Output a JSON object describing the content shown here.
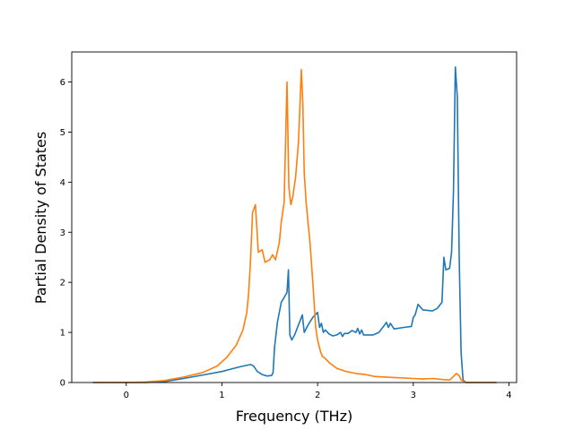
{
  "chart_data": {
    "type": "line",
    "title": "",
    "xlabel": "Frequency (THz)",
    "ylabel": "Partial Density of States",
    "xlim": [
      -0.57,
      4.08
    ],
    "ylim": [
      0,
      6.6
    ],
    "xticks": [
      0,
      1,
      2,
      3,
      4
    ],
    "xtick_labels": [
      "0",
      "1",
      "2",
      "3",
      "4"
    ],
    "yticks": [
      0,
      1,
      2,
      3,
      4,
      5,
      6
    ],
    "ytick_labels": [
      "0",
      "1",
      "2",
      "3",
      "4",
      "5",
      "6"
    ],
    "grid": false,
    "legend": "none",
    "series": [
      {
        "color": "#1f77b4",
        "x": [
          -0.35,
          0.0,
          0.2,
          0.4,
          0.6,
          0.8,
          1.0,
          1.1,
          1.2,
          1.25,
          1.3,
          1.33,
          1.37,
          1.42,
          1.47,
          1.52,
          1.535,
          1.55,
          1.58,
          1.62,
          1.65,
          1.68,
          1.695,
          1.71,
          1.73,
          1.76,
          1.8,
          1.84,
          1.86,
          1.9,
          1.95,
          2.0,
          2.02,
          2.04,
          2.06,
          2.08,
          2.12,
          2.16,
          2.2,
          2.24,
          2.26,
          2.28,
          2.32,
          2.36,
          2.4,
          2.42,
          2.44,
          2.46,
          2.48,
          2.52,
          2.58,
          2.64,
          2.68,
          2.72,
          2.74,
          2.76,
          2.8,
          2.9,
          2.98,
          3.0,
          3.02,
          3.05,
          3.1,
          3.2,
          3.25,
          3.3,
          3.32,
          3.34,
          3.38,
          3.4,
          3.42,
          3.44,
          3.46,
          3.48,
          3.5,
          3.52,
          3.55,
          3.6,
          3.7,
          3.87
        ],
        "values": [
          0.0,
          0.0,
          0.0,
          0.02,
          0.08,
          0.15,
          0.22,
          0.27,
          0.32,
          0.34,
          0.36,
          0.33,
          0.22,
          0.16,
          0.13,
          0.14,
          0.2,
          0.7,
          1.2,
          1.6,
          1.7,
          1.8,
          2.25,
          0.95,
          0.85,
          0.95,
          1.15,
          1.35,
          1.0,
          1.15,
          1.3,
          1.4,
          1.1,
          1.18,
          1.0,
          1.05,
          0.97,
          0.93,
          0.95,
          1.0,
          0.92,
          0.98,
          0.98,
          1.04,
          1.0,
          1.08,
          0.97,
          1.05,
          0.95,
          0.95,
          0.95,
          1.0,
          1.1,
          1.2,
          1.1,
          1.18,
          1.07,
          1.1,
          1.12,
          1.3,
          1.35,
          1.56,
          1.45,
          1.43,
          1.48,
          1.6,
          2.5,
          2.25,
          2.28,
          2.6,
          3.8,
          6.3,
          5.7,
          2.5,
          0.6,
          0.05,
          0.0,
          0.0,
          0.0,
          0.0
        ]
      },
      {
        "color": "#ff7f0e",
        "x": [
          -0.35,
          0.0,
          0.2,
          0.4,
          0.6,
          0.8,
          0.95,
          1.05,
          1.15,
          1.22,
          1.26,
          1.28,
          1.3,
          1.32,
          1.35,
          1.38,
          1.42,
          1.45,
          1.5,
          1.53,
          1.56,
          1.6,
          1.62,
          1.65,
          1.68,
          1.7,
          1.72,
          1.74,
          1.77,
          1.8,
          1.83,
          1.845,
          1.86,
          1.88,
          1.92,
          1.95,
          1.98,
          2.0,
          2.03,
          2.05,
          2.08,
          2.12,
          2.2,
          2.3,
          2.4,
          2.5,
          2.6,
          2.8,
          3.0,
          3.1,
          3.2,
          3.3,
          3.38,
          3.42,
          3.45,
          3.48,
          3.5,
          3.55,
          3.7,
          3.87
        ],
        "values": [
          0.0,
          0.0,
          0.01,
          0.04,
          0.11,
          0.2,
          0.33,
          0.5,
          0.75,
          1.05,
          1.4,
          1.8,
          2.5,
          3.4,
          3.55,
          2.6,
          2.65,
          2.4,
          2.45,
          2.55,
          2.45,
          2.8,
          3.2,
          3.6,
          6.0,
          3.9,
          3.55,
          3.7,
          4.1,
          4.8,
          6.25,
          5.6,
          4.2,
          3.6,
          2.8,
          2.0,
          1.1,
          0.85,
          0.62,
          0.52,
          0.48,
          0.4,
          0.28,
          0.22,
          0.18,
          0.16,
          0.12,
          0.1,
          0.08,
          0.07,
          0.08,
          0.06,
          0.05,
          0.12,
          0.18,
          0.14,
          0.05,
          0.0,
          0.0,
          0.0
        ]
      }
    ]
  }
}
